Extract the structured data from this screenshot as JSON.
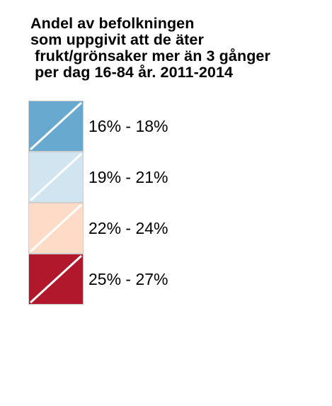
{
  "legend": {
    "title_lines": [
      "Andel av befolkningen",
      "som uppgivit att de äter",
      " frukt/grönsaker mer än 3 gånger",
      " per dag 16-84 år. 2011-2014"
    ],
    "items": [
      {
        "label": "16% - 18%",
        "color": "#67a9cf"
      },
      {
        "label": "19% - 21%",
        "color": "#d1e5f0"
      },
      {
        "label": "22% - 24%",
        "color": "#fddbc7"
      },
      {
        "label": "25% - 27%",
        "color": "#b2182b"
      }
    ],
    "border_color": "#cccccc",
    "diagonal_color": "#ffffff"
  }
}
